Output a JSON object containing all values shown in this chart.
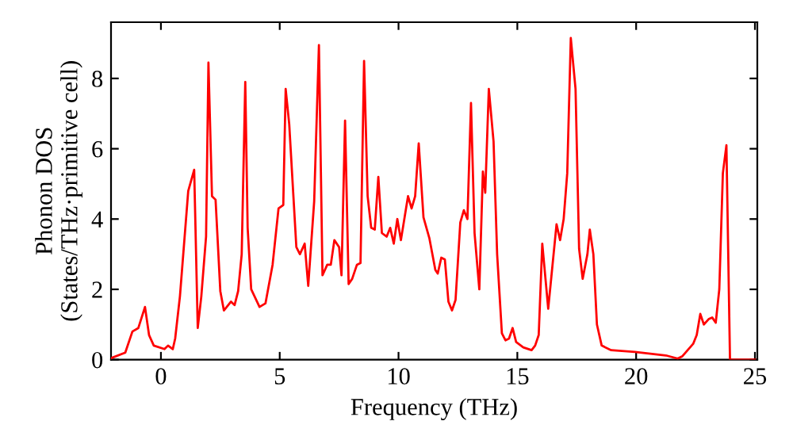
{
  "chart_data": {
    "type": "line",
    "xlabel": "Frequency (THz)",
    "ylabel": "Phonon DOS\n(States/THz·primitive cell)",
    "xlim": [
      -2.1,
      25.1
    ],
    "ylim": [
      0,
      9.6
    ],
    "xticks": [
      0,
      5,
      10,
      15,
      20,
      25
    ],
    "yticks": [
      0,
      2,
      4,
      6,
      8
    ],
    "grid": false,
    "marker": "none",
    "line_style": "solid",
    "series": [
      {
        "color": "#ff0000",
        "x": [
          -2.07,
          -1.5,
          -1.2,
          -0.95,
          -0.67,
          -0.5,
          -0.3,
          0.15,
          0.3,
          0.5,
          0.6,
          0.8,
          1.15,
          1.4,
          1.55,
          1.7,
          1.9,
          2.0,
          2.15,
          2.3,
          2.5,
          2.65,
          2.95,
          3.1,
          3.25,
          3.4,
          3.55,
          3.65,
          3.8,
          4.15,
          4.4,
          4.7,
          4.95,
          5.15,
          5.25,
          5.4,
          5.7,
          5.85,
          6.05,
          6.2,
          6.45,
          6.65,
          6.8,
          7.0,
          7.15,
          7.3,
          7.5,
          7.6,
          7.75,
          7.9,
          8.05,
          8.25,
          8.4,
          8.55,
          8.7,
          8.85,
          9.0,
          9.15,
          9.3,
          9.5,
          9.65,
          9.8,
          9.95,
          10.1,
          10.4,
          10.55,
          10.7,
          10.85,
          11.05,
          11.3,
          11.55,
          11.65,
          11.8,
          11.95,
          12.1,
          12.25,
          12.4,
          12.6,
          12.75,
          12.9,
          13.05,
          13.2,
          13.4,
          13.55,
          13.65,
          13.8,
          14.0,
          14.15,
          14.35,
          14.5,
          14.65,
          14.8,
          14.95,
          15.25,
          15.6,
          15.75,
          15.9,
          16.05,
          16.3,
          16.65,
          16.8,
          16.95,
          17.1,
          17.25,
          17.45,
          17.6,
          17.75,
          17.95,
          18.05,
          18.2,
          18.35,
          18.55,
          18.95,
          19.95,
          21.25,
          21.75,
          21.95,
          22.4,
          22.55,
          22.7,
          22.85,
          23.05,
          23.2,
          23.35,
          23.5,
          23.65,
          23.8,
          23.95,
          25.0
        ],
        "values": [
          0.05,
          0.2,
          0.8,
          0.9,
          1.5,
          0.7,
          0.4,
          0.3,
          0.4,
          0.3,
          0.6,
          1.8,
          4.8,
          5.4,
          0.9,
          1.8,
          3.5,
          8.45,
          4.65,
          4.55,
          1.95,
          1.4,
          1.65,
          1.55,
          1.95,
          3.0,
          7.9,
          3.75,
          2.0,
          1.5,
          1.6,
          2.7,
          4.3,
          4.4,
          7.7,
          6.7,
          3.2,
          3.0,
          3.3,
          2.1,
          4.5,
          8.95,
          2.4,
          2.7,
          2.7,
          3.4,
          3.2,
          2.4,
          6.8,
          2.15,
          2.3,
          2.7,
          2.75,
          8.5,
          4.65,
          3.75,
          3.7,
          5.2,
          3.6,
          3.5,
          3.75,
          3.3,
          4.0,
          3.4,
          4.65,
          4.3,
          4.65,
          6.15,
          4.05,
          3.45,
          2.55,
          2.45,
          2.9,
          2.85,
          1.65,
          1.4,
          1.7,
          3.9,
          4.25,
          4.0,
          7.3,
          3.6,
          2.0,
          5.35,
          4.75,
          7.7,
          6.2,
          3.0,
          0.75,
          0.55,
          0.6,
          0.9,
          0.5,
          0.35,
          0.27,
          0.4,
          0.7,
          3.3,
          1.45,
          3.85,
          3.4,
          4.0,
          5.3,
          9.15,
          7.7,
          3.15,
          2.3,
          3.0,
          3.7,
          3.0,
          1.0,
          0.4,
          0.27,
          0.22,
          0.12,
          0.03,
          0.1,
          0.45,
          0.7,
          1.3,
          1.0,
          1.15,
          1.2,
          1.05,
          2.0,
          5.3,
          6.1,
          0.0,
          0.0
        ]
      }
    ]
  }
}
